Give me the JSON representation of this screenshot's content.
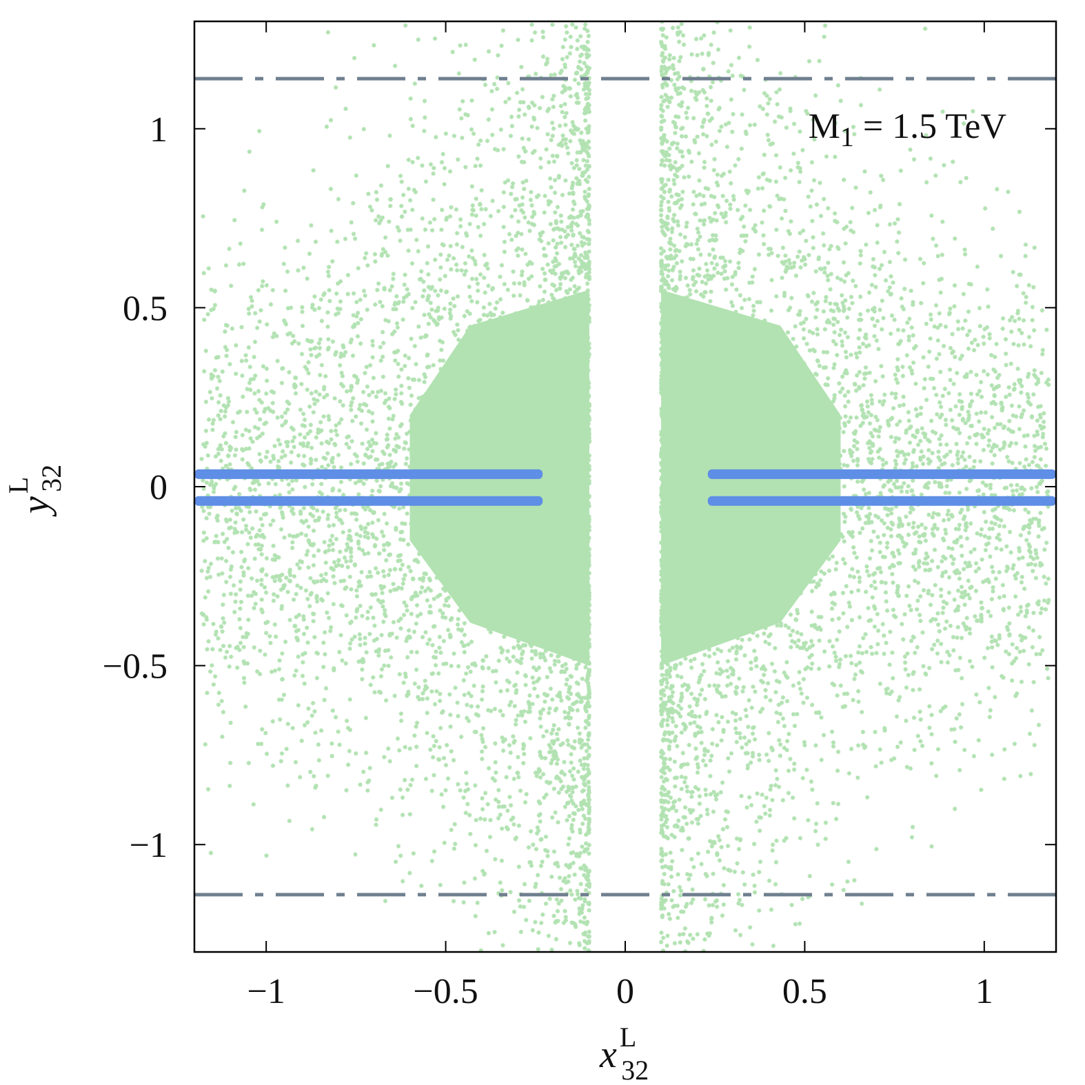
{
  "chart_data": {
    "type": "scatter",
    "title": "",
    "xlabel": {
      "base": "x",
      "sup": "L",
      "sub": "32"
    },
    "ylabel": {
      "base": "y",
      "sup": "L",
      "sub": "32"
    },
    "xlim": [
      -1.2,
      1.2
    ],
    "ylim": [
      -1.3,
      1.3
    ],
    "xticks": [
      -1,
      -0.5,
      0,
      0.5,
      1
    ],
    "yticks": [
      -1,
      -0.5,
      0,
      0.5,
      1
    ],
    "xtick_labels": [
      "−1",
      "−0.5",
      "0",
      "0.5",
      "1"
    ],
    "ytick_labels": [
      "−1",
      "−0.5",
      "0",
      "0.5",
      "1"
    ],
    "grid": false,
    "annotation": {
      "base": "M",
      "sub": "1",
      "rest": " = 1.5 TeV"
    },
    "reference_lines": [
      {
        "orientation": "horizontal",
        "y": 1.14,
        "style": "dash-dot",
        "color": "#6f7f8f"
      },
      {
        "orientation": "horizontal",
        "y": -1.14,
        "style": "dash-dot",
        "color": "#6f7f8f"
      }
    ],
    "series": [
      {
        "marker": "star",
        "color": "#b2e2b2",
        "description_regions": {
          "x_gap": [
            -0.1,
            0.1
          ],
          "dense_band_left": [
            -0.6,
            -0.1
          ],
          "dense_band_right": [
            0.1,
            0.6
          ],
          "y_extent": [
            -1.3,
            1.3
          ]
        }
      },
      {
        "marker": "star",
        "color": "#5f8ee6",
        "bands": [
          {
            "x": [
              -1.2,
              -0.23
            ],
            "y": 0.035
          },
          {
            "x": [
              -1.2,
              -0.23
            ],
            "y": -0.04
          },
          {
            "x": [
              0.23,
              1.2
            ],
            "y": 0.035
          },
          {
            "x": [
              0.23,
              1.2
            ],
            "y": -0.04
          }
        ]
      }
    ]
  }
}
